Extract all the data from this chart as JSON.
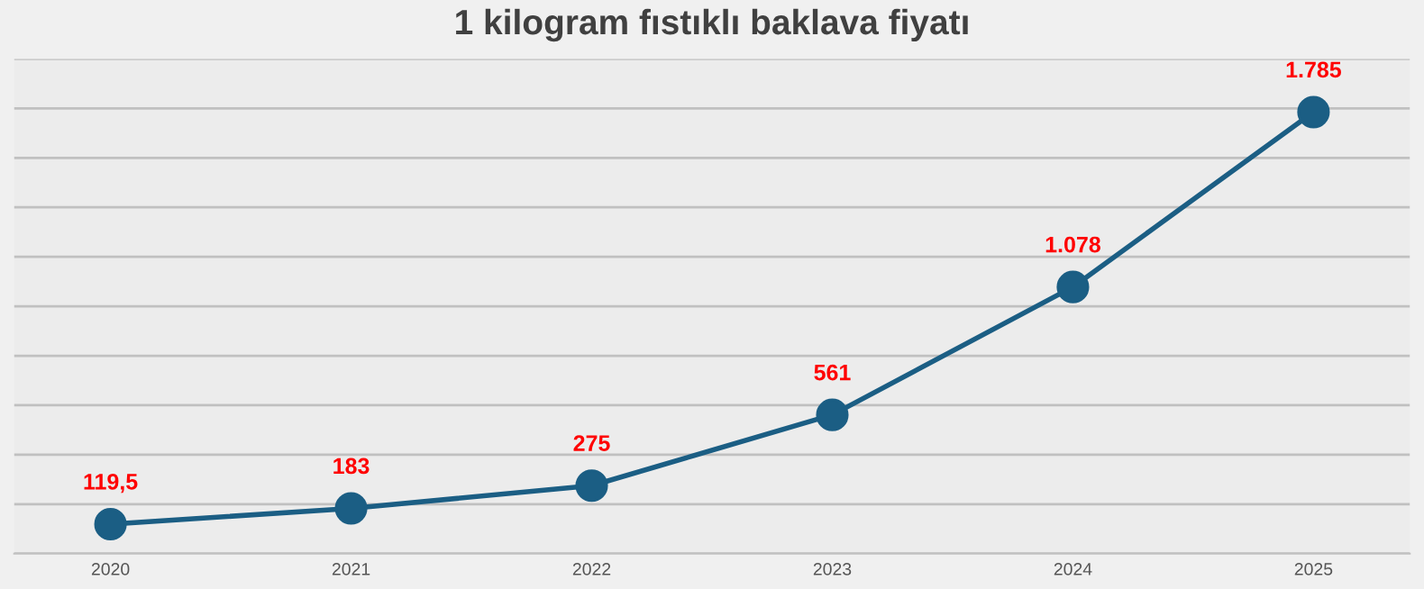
{
  "chart_data": {
    "type": "line",
    "title": "1 kilogram fıstıklı baklava fiyatı",
    "categories": [
      "2020",
      "2021",
      "2022",
      "2023",
      "2024",
      "2025"
    ],
    "series": [
      {
        "color": "#1b5e84",
        "values": [
          119.5,
          183,
          275,
          561,
          1078,
          1785
        ],
        "value_labels": [
          "119,5",
          "183",
          "275",
          "561",
          "1.078",
          "1.785"
        ]
      }
    ],
    "ylim": [
      0,
      2000
    ],
    "yticks": [
      {
        "value": 0,
        "label": null
      },
      {
        "value": 200,
        "label": null
      },
      {
        "value": 400,
        "label": null
      },
      {
        "value": 600,
        "label": null
      },
      {
        "value": 800,
        "label": null
      },
      {
        "value": 1000,
        "label": null
      },
      {
        "value": 1200,
        "label": null
      },
      {
        "value": 1400,
        "label": null
      },
      {
        "value": 1600,
        "label": null
      },
      {
        "value": 1800,
        "label": null
      },
      {
        "value": 2000,
        "label": null
      }
    ],
    "tick_labels": "x",
    "grid": "y",
    "marker": "circle",
    "line_style": "solid"
  }
}
